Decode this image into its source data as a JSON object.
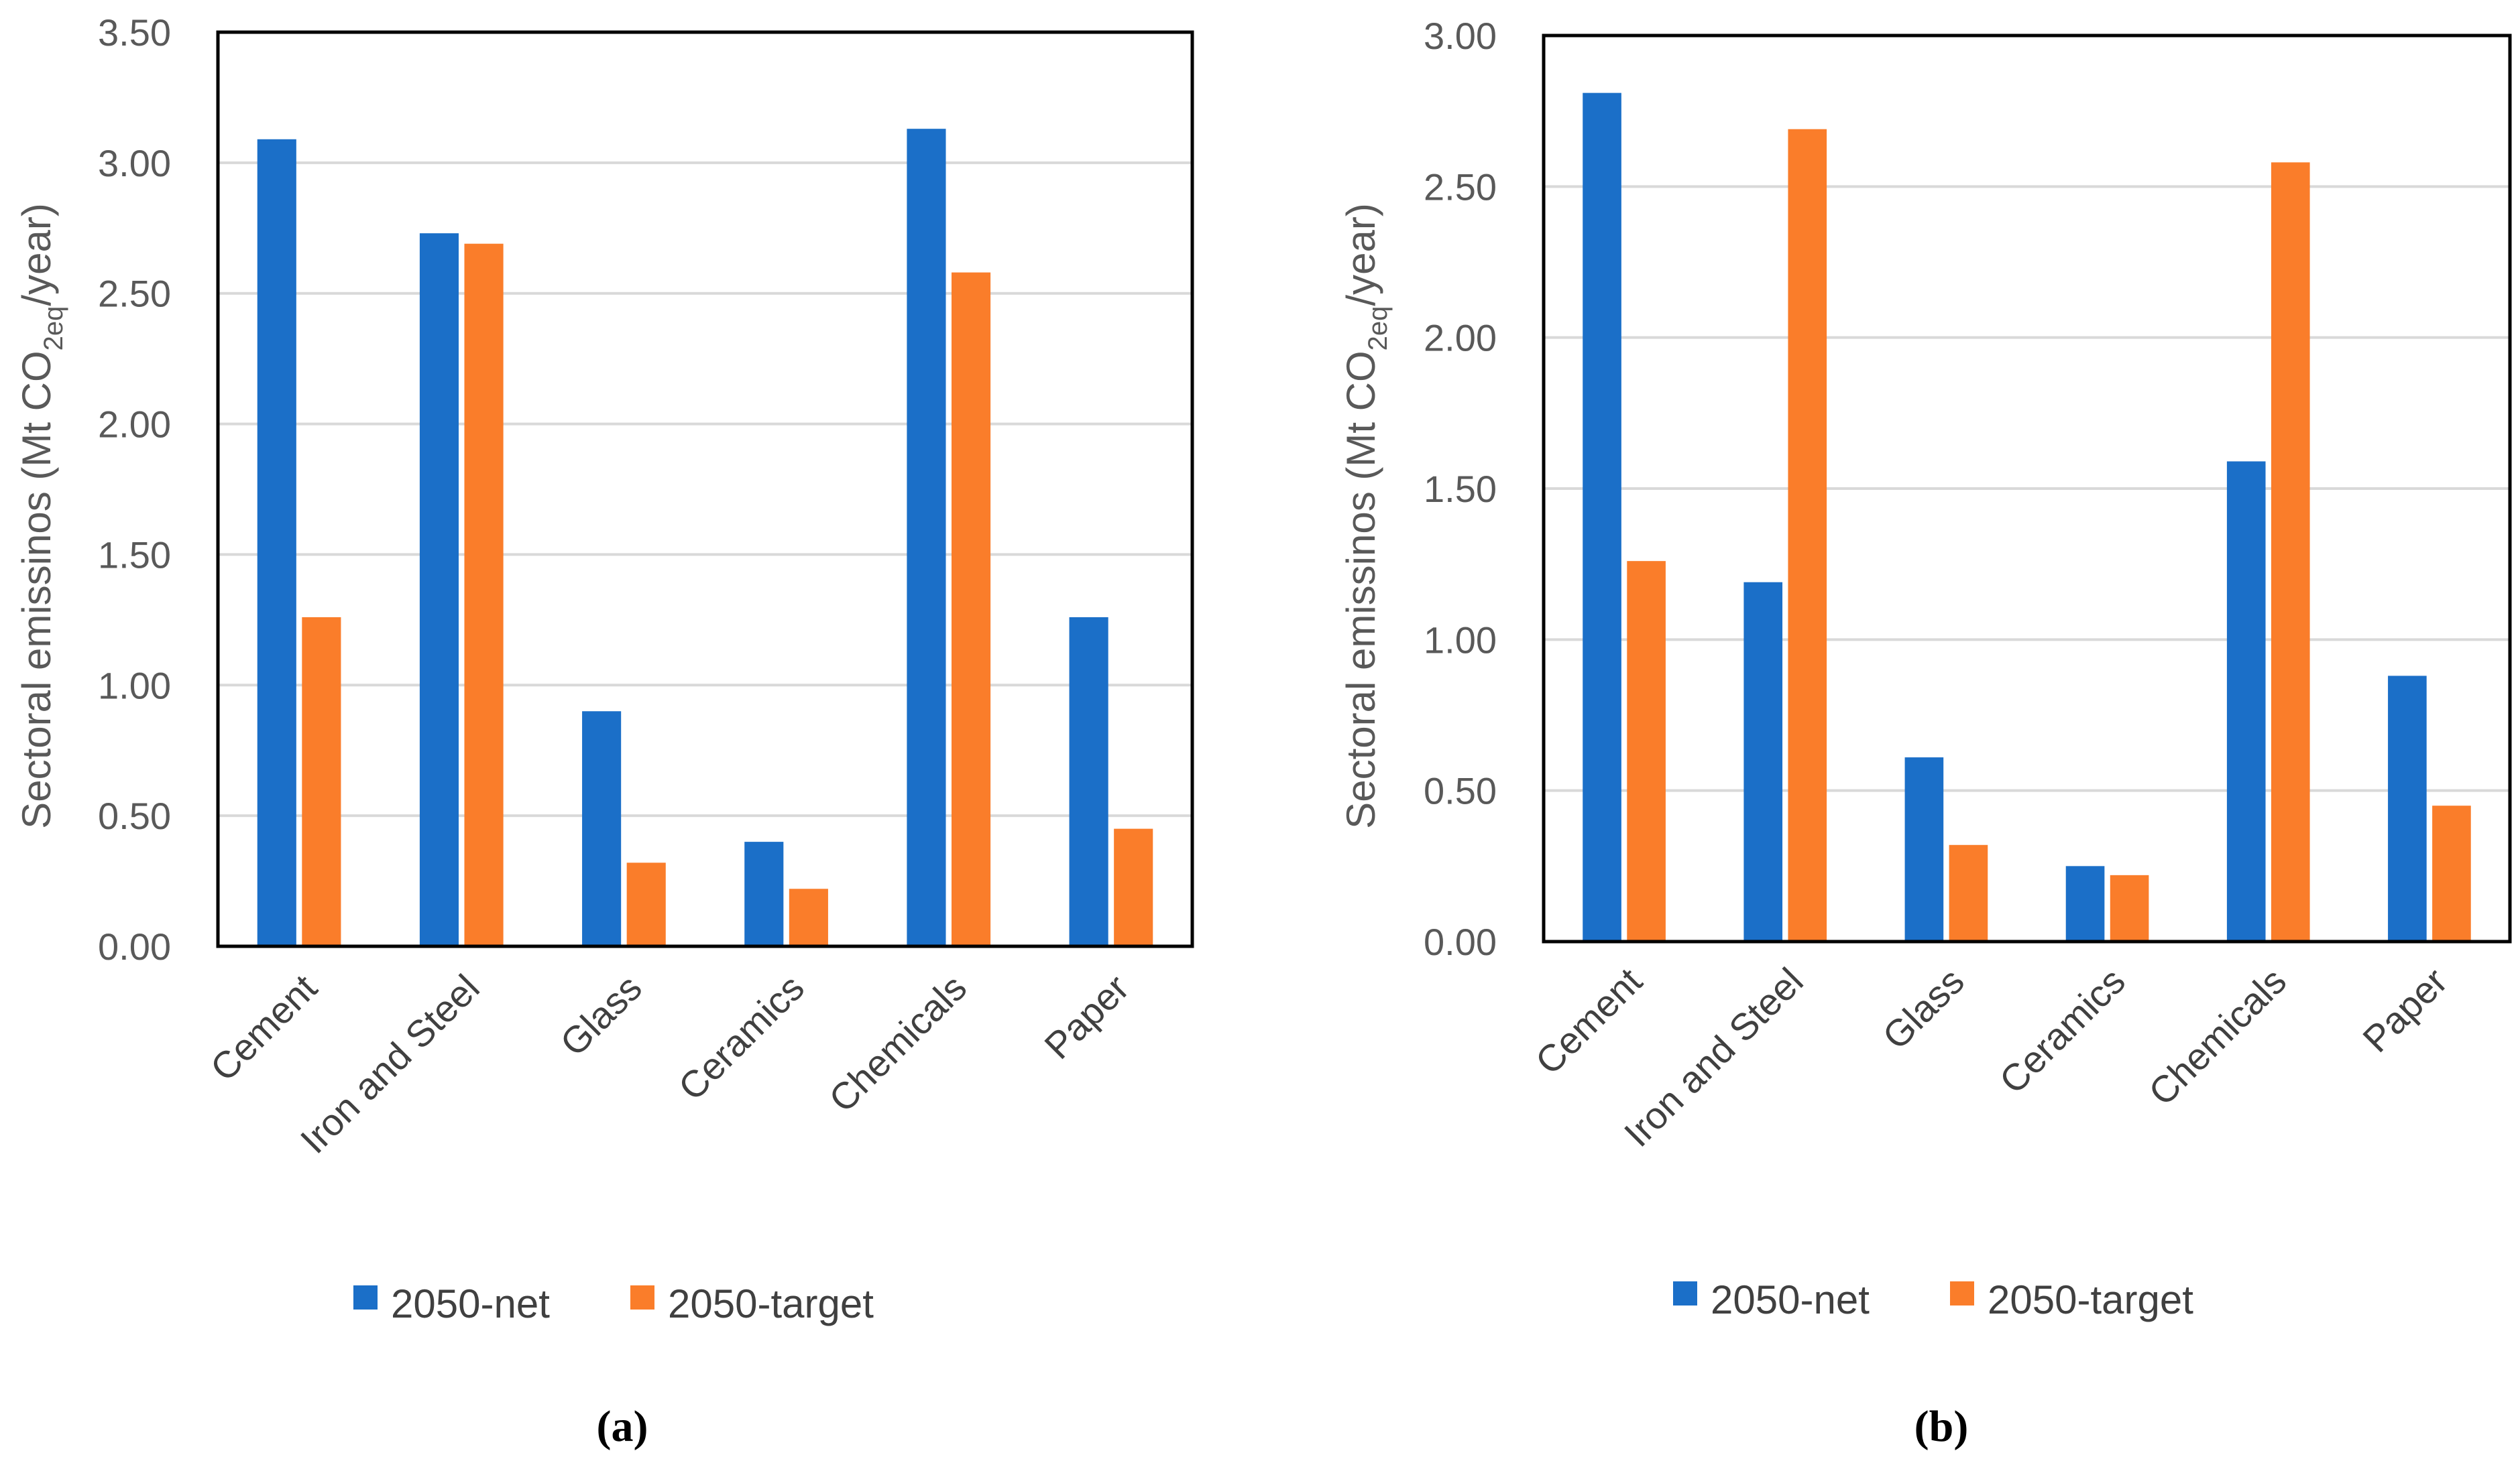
{
  "colors": {
    "net": "#1B6FC8",
    "target": "#FA7D2A",
    "grid": "#D9D9D9",
    "frame": "#000000"
  },
  "chart_data": [
    {
      "type": "bar",
      "panel": "a",
      "caption": "(a)",
      "categories": [
        "Cement",
        "Iron and Steel",
        "Glass",
        "Ceramics",
        "Chemicals",
        "Paper"
      ],
      "series": [
        {
          "name": "2050-net",
          "values": [
            3.09,
            2.73,
            0.9,
            0.4,
            3.13,
            1.26
          ]
        },
        {
          "name": "2050-target",
          "values": [
            1.26,
            2.69,
            0.32,
            0.22,
            2.58,
            0.45
          ]
        }
      ],
      "ylabel": "Sectoral emissinos (Mt CO2eq/year)",
      "ylabel_parts": [
        "Sectoral emissinos (Mt CO",
        "2eq",
        "/year)"
      ],
      "ylim": [
        0,
        3.5
      ],
      "yticks": [
        "0.00",
        "0.50",
        "1.00",
        "1.50",
        "2.00",
        "2.50",
        "3.00",
        "3.50"
      ],
      "grid": true,
      "legend": "bottom"
    },
    {
      "type": "bar",
      "panel": "b",
      "caption": "(b)",
      "categories": [
        "Cement",
        "Iron and Steel",
        "Glass",
        "Ceramics",
        "Chemicals",
        "Paper"
      ],
      "series": [
        {
          "name": "2050-net",
          "values": [
            2.81,
            1.19,
            0.61,
            0.25,
            1.59,
            0.88
          ]
        },
        {
          "name": "2050-target",
          "values": [
            1.26,
            2.69,
            0.32,
            0.22,
            2.58,
            0.45
          ]
        }
      ],
      "ylabel": "Sectoral emissinos (Mt CO2eq/year)",
      "ylabel_parts": [
        "Sectoral emissinos (Mt CO",
        "2eq",
        "/year)"
      ],
      "ylim": [
        0,
        3.0
      ],
      "yticks": [
        "0.00",
        "0.50",
        "1.00",
        "1.50",
        "2.00",
        "2.50",
        "3.00"
      ],
      "grid": true,
      "legend": "bottom"
    }
  ]
}
